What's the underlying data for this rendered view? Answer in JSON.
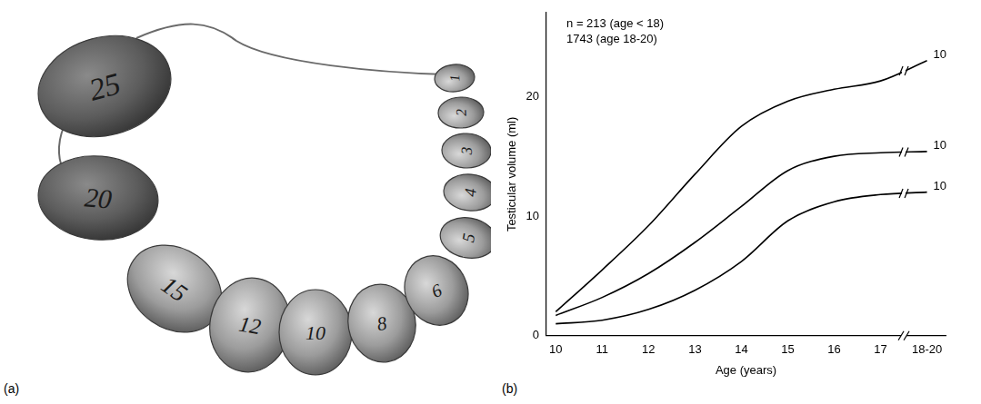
{
  "panel_labels": [
    "(a)",
    "(b)"
  ],
  "photo": {
    "beads": [
      25,
      20,
      15,
      12,
      10,
      8,
      6,
      5,
      4,
      3,
      2,
      1
    ]
  },
  "chart_data": {
    "type": "line",
    "x_label": "Age (years)",
    "y_label": "Testicular volume (ml)",
    "annotations": [
      "n = 213 (age < 18)",
      "1743 (age 18-20)"
    ],
    "x": [
      10,
      11,
      12,
      13,
      14,
      15,
      16,
      17,
      18
    ],
    "series": [
      {
        "name": "10",
        "color": "#000000",
        "values": [
          2.0,
          5.5,
          9.2,
          13.5,
          17.5,
          19.6,
          20.6,
          21.3,
          23.0
        ]
      },
      {
        "name": "10",
        "color": "#000000",
        "values": [
          1.7,
          3.2,
          5.2,
          7.8,
          10.8,
          13.8,
          15.0,
          15.3,
          15.4
        ]
      },
      {
        "name": "10",
        "color": "#000000",
        "values": [
          1.0,
          1.3,
          2.2,
          3.8,
          6.2,
          9.6,
          11.2,
          11.8,
          12.0
        ]
      }
    ],
    "xlim": [
      9.8,
      18.4
    ],
    "xticks": [
      10,
      11,
      12,
      13,
      14,
      15,
      16,
      17,
      {
        "value": 18,
        "label": "18-20"
      }
    ],
    "ylim": [
      0,
      27
    ],
    "yticks": [
      0,
      10,
      20
    ],
    "grid": false
  }
}
